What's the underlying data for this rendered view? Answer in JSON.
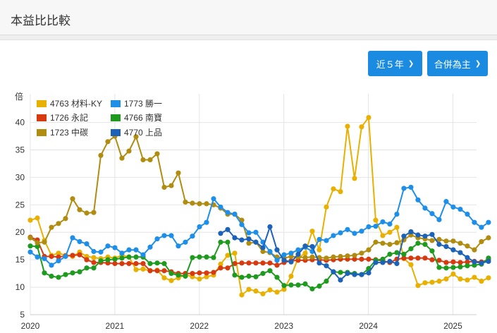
{
  "header": {
    "title": "本益比比較"
  },
  "controls": {
    "period_label": "近５年",
    "basis_label": "合併為主"
  },
  "chart_data": {
    "type": "line",
    "ylabel": "倍",
    "ylim": [
      5,
      42
    ],
    "yticks": [
      5,
      10,
      15,
      20,
      25,
      30,
      35,
      40
    ],
    "xlim": [
      2020.0,
      2025.28
    ],
    "xticks": [
      "2020",
      "2021",
      "2022",
      "2023",
      "2024",
      "2025"
    ],
    "grid": true,
    "legend_position": "top-left",
    "start": 2020.0,
    "step": 0.0834,
    "series": [
      {
        "name": "4763 材料-KY",
        "color": "#e8b000",
        "values": [
          22.2,
          22.6,
          18.5,
          15.8,
          16.2,
          15.8,
          15.6,
          16.4,
          15.6,
          15.4,
          15.2,
          15.5,
          15.3,
          15.8,
          15.5,
          13.2,
          13.3,
          13.0,
          13.1,
          11.7,
          11.2,
          11.7,
          12.3,
          11.9,
          11.5,
          11.9,
          12.2,
          14.2,
          15.8,
          16.2,
          8.6,
          9.6,
          9.3,
          8.8,
          9.5,
          9.1,
          9.6,
          12.0,
          15.3,
          16.2,
          20.2,
          16.8,
          24.6,
          27.9,
          27.4,
          39.3,
          29.8,
          39.2,
          40.9,
          22.2,
          19.4,
          20.0,
          20.9,
          15.2,
          14.1,
          10.3,
          10.8,
          10.9,
          11.1,
          11.5,
          12.4,
          11.5,
          11.3,
          11.8,
          11.1,
          11.7
        ]
      },
      {
        "name": "1773 勝一",
        "color": "#1e8fe8",
        "values": [
          16.4,
          15.5,
          15.2,
          14.0,
          14.8,
          15.6,
          19.0,
          18.3,
          17.9,
          16.5,
          16.4,
          17.5,
          17.2,
          16.2,
          16.8,
          16.8,
          15.9,
          17.3,
          18.8,
          19.4,
          19.4,
          17.5,
          18.2,
          19.3,
          21.0,
          21.8,
          26.1,
          24.6,
          23.6,
          23.3,
          21.4,
          19.9,
          20.0,
          18.2,
          16.5,
          14.9,
          15.9,
          16.2,
          16.8,
          17.3,
          16.5,
          18.7,
          18.5,
          19.4,
          19.9,
          20.5,
          19.8,
          20.2,
          21.0,
          21.1,
          21.9,
          21.5,
          23.3,
          28.0,
          28.2,
          25.9,
          24.4,
          23.4,
          22.3,
          25.6,
          24.6,
          24.2,
          23.3,
          21.8,
          20.9,
          21.8
        ]
      },
      {
        "name": "1726 永記",
        "color": "#d63a0e",
        "values": [
          19.1,
          18.6,
          15.6,
          15.6,
          15.5,
          15.7,
          15.8,
          15.9,
          15.0,
          14.5,
          14.5,
          14.4,
          14.3,
          14.3,
          14.3,
          14.3,
          14.3,
          13.0,
          13.0,
          13.0,
          12.8,
          12.5,
          12.5,
          12.5,
          12.6,
          12.6,
          12.7,
          13.5,
          13.5,
          14.3,
          14.4,
          14.4,
          14.4,
          14.4,
          14.4,
          14.0,
          14.5,
          14.8,
          14.9,
          14.9,
          15.0,
          15.0,
          14.9,
          15.0,
          15.1,
          15.1,
          15.1,
          15.1,
          15.1,
          15.0,
          14.8,
          14.5,
          15.1,
          15.3,
          15.3,
          15.3,
          15.3,
          15.0,
          14.9,
          14.5,
          14.6,
          14.5,
          14.6,
          14.7,
          14.6,
          15.0
        ]
      },
      {
        "name": "4766 南寶",
        "color": "#1e9a1e",
        "values": [
          17.5,
          17.4,
          12.6,
          12.0,
          11.8,
          12.3,
          12.6,
          12.8,
          13.5,
          13.5,
          14.8,
          15.0,
          15.1,
          15.3,
          15.5,
          15.5,
          15.5,
          14.3,
          14.4,
          14.3,
          12.5,
          12.2,
          12.0,
          15.4,
          15.5,
          15.5,
          15.4,
          18.2,
          18.2,
          12.2,
          11.8,
          12.0,
          11.9,
          12.5,
          13.0,
          11.8,
          10.3,
          10.4,
          10.4,
          10.6,
          9.7,
          10.2,
          11.1,
          12.8,
          12.7,
          12.7,
          12.5,
          12.3,
          13.4,
          14.9,
          15.1,
          16.0,
          16.3,
          16.0,
          17.0,
          18.0,
          17.8,
          16.6,
          13.6,
          13.5,
          13.6,
          13.7,
          13.9,
          14.0,
          14.2,
          15.3
        ]
      },
      {
        "name": "1723 中碳",
        "color": "#b08c10",
        "values": [
          19.0,
          18.1,
          18.2,
          20.9,
          21.6,
          22.5,
          26.1,
          24.1,
          23.5,
          23.6,
          34.0,
          36.5,
          37.5,
          33.5,
          34.8,
          37.4,
          33.2,
          33.2,
          34.3,
          28.2,
          28.5,
          30.8,
          25.5,
          25.3,
          25.2,
          25.2,
          25.0,
          24.4,
          23.3,
          23.3,
          22.2,
          18.0,
          18.2,
          16.5,
          16.3,
          15.5,
          15.3,
          15.6,
          15.5,
          15.4,
          15.5,
          15.4,
          15.3,
          15.5,
          15.6,
          15.7,
          15.8,
          16.2,
          16.8,
          18.2,
          18.0,
          17.8,
          18.1,
          18.6,
          19.5,
          19.0,
          18.8,
          18.5,
          18.7,
          18.4,
          18.4,
          18.0,
          17.5,
          16.8,
          18.3,
          19.0
        ]
      },
      {
        "name": "4770 上品",
        "color": "#1c62b8",
        "values": [
          null,
          null,
          null,
          null,
          null,
          null,
          null,
          null,
          null,
          null,
          null,
          null,
          null,
          null,
          null,
          null,
          null,
          null,
          null,
          null,
          null,
          null,
          null,
          null,
          null,
          null,
          null,
          19.8,
          20.5,
          19.0,
          18.6,
          18.8,
          18.2,
          17.2,
          21.0,
          16.8,
          14.9,
          14.6,
          16.0,
          17.5,
          17.4,
          14.4,
          13.9,
          12.8,
          11.3,
          12.5,
          12.3,
          12.3,
          12.6,
          14.5,
          14.5,
          14.7,
          14.3,
          19.3,
          20.1,
          19.5,
          19.3,
          19.6,
          17.8,
          17.4,
          16.8,
          16.3,
          15.4,
          14.6,
          14.4,
          14.7
        ]
      }
    ]
  }
}
